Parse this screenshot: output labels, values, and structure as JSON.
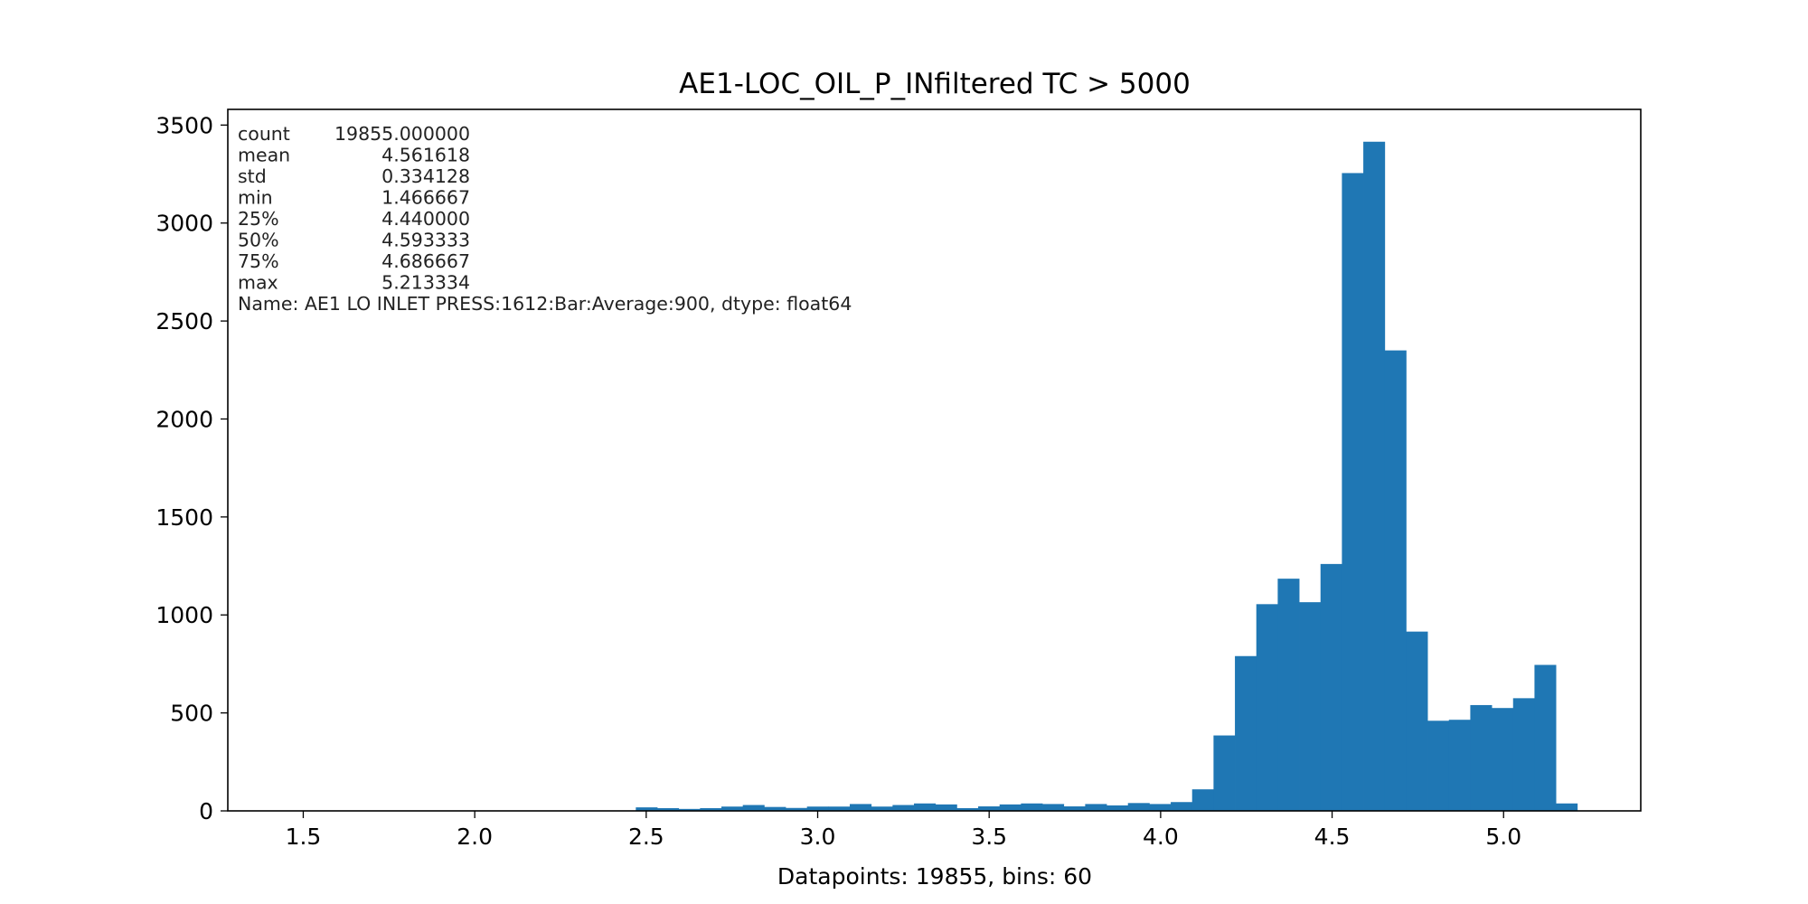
{
  "chart_data": {
    "type": "bar",
    "title": "AE1-LOC_OIL_P_INfiltered TC > 5000",
    "xlabel": "Datapoints: 19855, bins: 60",
    "ylabel": "",
    "xlim": [
      1.28,
      5.4
    ],
    "ylim": [
      0,
      3580
    ],
    "x_ticks": [
      1.5,
      2.0,
      2.5,
      3.0,
      3.5,
      4.0,
      4.5,
      5.0
    ],
    "x_tick_labels": [
      "1.5",
      "2.0",
      "2.5",
      "3.0",
      "3.5",
      "4.0",
      "4.5",
      "5.0"
    ],
    "y_ticks": [
      0,
      500,
      1000,
      1500,
      2000,
      2500,
      3000,
      3500
    ],
    "y_tick_labels": [
      "0",
      "500",
      "1000",
      "1500",
      "2000",
      "2500",
      "3000",
      "3500"
    ],
    "bin_start": 2.4697,
    "bin_width": 0.06239,
    "bar_color": "#1f77b4",
    "values": [
      18,
      14,
      10,
      14,
      22,
      30,
      20,
      15,
      22,
      22,
      35,
      22,
      30,
      38,
      33,
      14,
      23,
      33,
      38,
      35,
      23,
      35,
      28,
      40,
      35,
      45,
      110,
      385,
      790,
      1055,
      1185,
      1065,
      1260,
      3255,
      3415,
      2350,
      915,
      460,
      465,
      540,
      525,
      575,
      745,
      38
    ],
    "stats_lines": [
      {
        "label": "count",
        "value": "19855.000000"
      },
      {
        "label": "mean",
        "value": "4.561618"
      },
      {
        "label": "std",
        "value": "0.334128"
      },
      {
        "label": "min",
        "value": "1.466667"
      },
      {
        "label": "25%",
        "value": "4.440000"
      },
      {
        "label": "50%",
        "value": "4.593333"
      },
      {
        "label": "75%",
        "value": "4.686667"
      },
      {
        "label": "max",
        "value": "5.213334"
      }
    ],
    "stats_footer": "Name: AE1 LO INLET PRESS:1612:Bar:Average:900, dtype: float64",
    "grid": false,
    "legend": "none"
  }
}
